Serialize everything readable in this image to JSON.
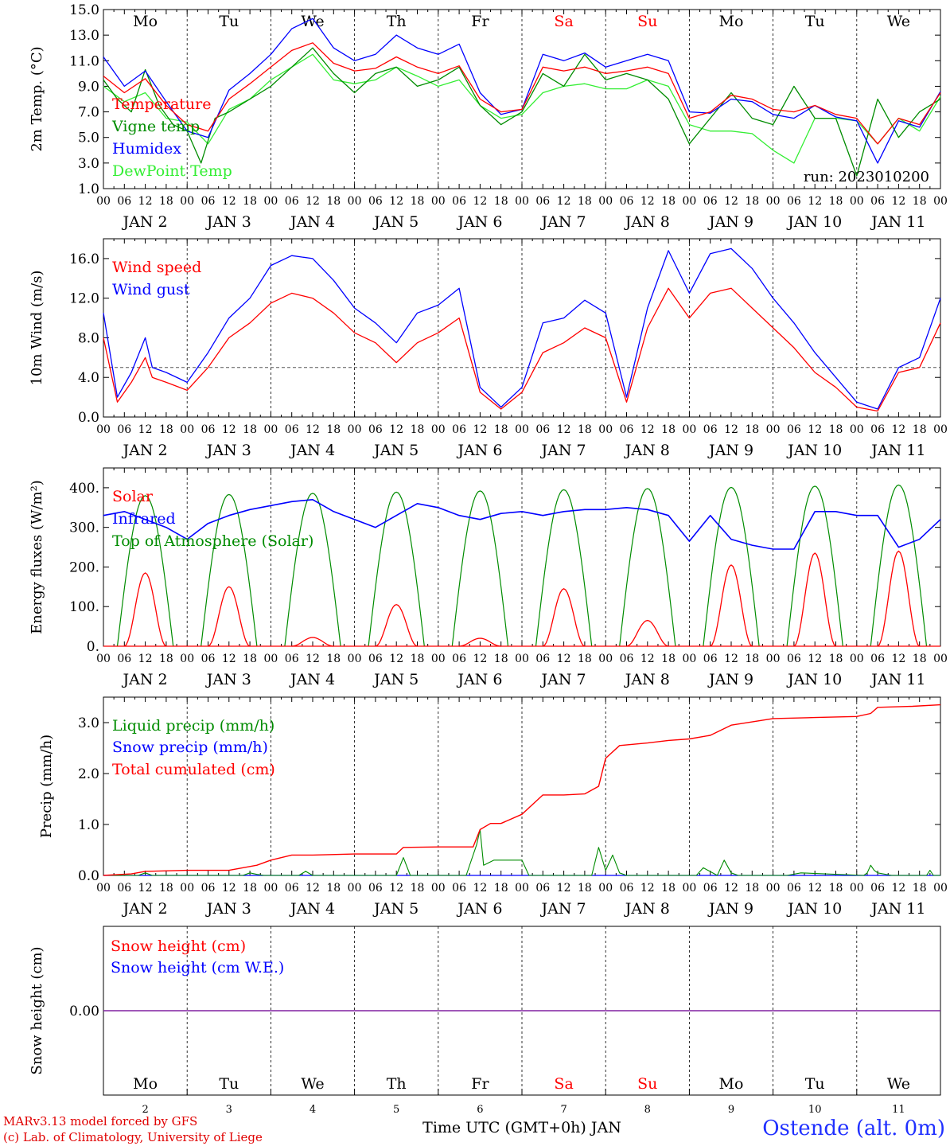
{
  "run_label": "run: 2023010200",
  "x_axis_label": "Time UTC (GMT+0h) JAN",
  "credit_line1": "MARv3.13 model forced by GFS",
  "credit_line2": "(c) Lab. of Climatology, University of Liege",
  "station": "Ostende (alt. 0m)",
  "days": [
    {
      "abbr": "Mo",
      "date": "JAN  2",
      "num": "2",
      "weekend": false
    },
    {
      "abbr": "Tu",
      "date": "JAN  3",
      "num": "3",
      "weekend": false
    },
    {
      "abbr": "We",
      "date": "JAN  4",
      "num": "4",
      "weekend": false
    },
    {
      "abbr": "Th",
      "date": "JAN  5",
      "num": "5",
      "weekend": false
    },
    {
      "abbr": "Fr",
      "date": "JAN  6",
      "num": "6",
      "weekend": false
    },
    {
      "abbr": "Sa",
      "date": "JAN  7",
      "num": "7",
      "weekend": true
    },
    {
      "abbr": "Su",
      "date": "JAN  8",
      "num": "8",
      "weekend": true
    },
    {
      "abbr": "Mo",
      "date": "JAN  9",
      "num": "9",
      "weekend": false
    },
    {
      "abbr": "Tu",
      "date": "JAN 10",
      "num": "10",
      "weekend": false
    },
    {
      "abbr": "We",
      "date": "JAN 11",
      "num": "11",
      "weekend": false
    }
  ],
  "hour_ticks": [
    "00",
    "06",
    "12",
    "18"
  ],
  "colors": {
    "red": "#ff0000",
    "green": "#008c00",
    "blue": "#0000ff",
    "lightgreen": "#33ee33",
    "purple": "#8020a0",
    "weekend": "#ff0000"
  },
  "chart_data": [
    {
      "type": "line",
      "ylabel": "2m Temp. (°C)",
      "ylim": [
        1,
        15
      ],
      "yticks": [
        "1.0",
        "3.0",
        "5.0",
        "7.0",
        "9.0",
        "11.0",
        "13.0",
        "15.0"
      ],
      "x_unit": "hours since JAN 2 00 UTC",
      "series": [
        {
          "name": "Temperature",
          "color": "red",
          "x": [
            0,
            6,
            12,
            18,
            24,
            30,
            36,
            42,
            48,
            54,
            60,
            66,
            72,
            78,
            84,
            90,
            96,
            102,
            108,
            114,
            120,
            126,
            132,
            138,
            144,
            150,
            156,
            162,
            168,
            174,
            180,
            186,
            192,
            198,
            204,
            210,
            216,
            222,
            228,
            234,
            240
          ],
          "values": [
            9.8,
            8.5,
            9.6,
            7.5,
            6.0,
            5.5,
            8.0,
            9.2,
            10.5,
            11.8,
            12.4,
            10.8,
            10.2,
            10.4,
            11.3,
            10.5,
            10.0,
            10.6,
            8.0,
            7.0,
            7.2,
            10.5,
            10.2,
            10.5,
            10.0,
            10.2,
            10.5,
            10.0,
            6.5,
            7.0,
            8.3,
            8.0,
            7.2,
            7.0,
            7.5,
            6.8,
            6.5,
            4.5,
            6.5,
            6.0,
            8.5
          ]
        },
        {
          "name": "Vigne temp",
          "color": "green",
          "x": [
            0,
            4,
            8,
            12,
            16,
            20,
            24,
            28,
            32,
            36,
            42,
            48,
            54,
            60,
            66,
            72,
            78,
            84,
            90,
            96,
            102,
            108,
            114,
            120,
            126,
            132,
            138,
            144,
            150,
            156,
            162,
            168,
            174,
            180,
            186,
            192,
            198,
            204,
            210,
            216,
            222,
            228,
            234,
            240
          ],
          "values": [
            9.5,
            8.0,
            7.0,
            10.3,
            7.5,
            6.0,
            5.5,
            3.0,
            6.5,
            7.0,
            8.0,
            9.0,
            10.5,
            12.0,
            10.0,
            8.5,
            10.0,
            10.5,
            9.0,
            9.5,
            10.5,
            7.5,
            6.0,
            7.0,
            10.0,
            9.0,
            11.5,
            9.5,
            10.0,
            9.5,
            8.0,
            4.5,
            6.5,
            8.5,
            6.5,
            6.0,
            9.0,
            6.5,
            6.5,
            2.0,
            8.0,
            5.0,
            7.0,
            8.0
          ]
        },
        {
          "name": "Humidex",
          "color": "blue",
          "x": [
            0,
            6,
            12,
            18,
            24,
            30,
            36,
            42,
            48,
            54,
            60,
            66,
            72,
            78,
            84,
            90,
            96,
            102,
            108,
            114,
            120,
            126,
            132,
            138,
            144,
            150,
            156,
            162,
            168,
            174,
            180,
            186,
            192,
            198,
            204,
            210,
            216,
            222,
            228,
            234,
            240
          ],
          "values": [
            11.3,
            9.0,
            10.2,
            7.8,
            5.5,
            5.0,
            8.7,
            10.0,
            11.5,
            13.5,
            14.3,
            12.0,
            11.0,
            11.5,
            13.0,
            12.0,
            11.5,
            12.3,
            8.5,
            6.8,
            7.2,
            11.5,
            11.0,
            11.6,
            10.5,
            11.0,
            11.5,
            11.0,
            7.0,
            6.9,
            8.0,
            7.8,
            6.8,
            6.5,
            7.5,
            6.6,
            6.3,
            3.0,
            6.3,
            5.8,
            8.6
          ]
        },
        {
          "name": "DewPoint Temp",
          "color": "lightgreen",
          "x": [
            0,
            6,
            12,
            18,
            24,
            30,
            36,
            42,
            48,
            54,
            60,
            66,
            72,
            78,
            84,
            90,
            96,
            102,
            108,
            114,
            120,
            126,
            132,
            138,
            144,
            150,
            156,
            162,
            168,
            174,
            180,
            186,
            192,
            198,
            204,
            210,
            216,
            222,
            228,
            234,
            240
          ],
          "values": [
            9.0,
            7.8,
            8.5,
            6.5,
            6.2,
            4.5,
            7.2,
            8.0,
            9.5,
            10.5,
            11.5,
            9.5,
            9.2,
            9.5,
            10.5,
            9.8,
            9.0,
            9.5,
            7.5,
            6.5,
            6.8,
            8.5,
            9.0,
            9.2,
            8.8,
            8.8,
            9.5,
            9.0,
            6.0,
            5.5,
            5.5,
            5.3,
            4.0,
            3.0,
            6.5,
            6.5,
            6.3,
            4.5,
            6.5,
            5.5,
            8.2
          ]
        }
      ]
    },
    {
      "type": "line",
      "ylabel": "10m Wind (m/s)",
      "ylim": [
        0,
        18
      ],
      "yticks": [
        "0.0",
        "4.0",
        "8.0",
        "12.0",
        "16.0"
      ],
      "reference_line": 5,
      "series": [
        {
          "name": "Wind speed",
          "color": "red",
          "x": [
            0,
            4,
            8,
            12,
            14,
            18,
            24,
            30,
            36,
            42,
            48,
            54,
            60,
            66,
            72,
            78,
            84,
            90,
            96,
            102,
            108,
            114,
            120,
            126,
            132,
            138,
            144,
            150,
            156,
            162,
            168,
            174,
            180,
            186,
            192,
            198,
            204,
            210,
            216,
            222,
            228,
            234,
            240
          ],
          "values": [
            8.0,
            1.5,
            3.5,
            6.0,
            4.0,
            3.5,
            2.7,
            5.0,
            8.0,
            9.5,
            11.5,
            12.5,
            12.0,
            10.5,
            8.5,
            7.5,
            5.5,
            7.5,
            8.5,
            10.0,
            2.5,
            0.8,
            2.5,
            6.5,
            7.5,
            9.0,
            8.0,
            1.5,
            9.0,
            13.0,
            10.0,
            12.5,
            13.0,
            11.0,
            9.0,
            7.0,
            4.5,
            3.0,
            1.0,
            0.6,
            4.5,
            5.0,
            9.5
          ]
        },
        {
          "name": "Wind gust",
          "color": "blue",
          "x": [
            0,
            4,
            8,
            12,
            14,
            18,
            24,
            30,
            36,
            42,
            48,
            54,
            60,
            66,
            72,
            78,
            84,
            90,
            96,
            102,
            108,
            114,
            120,
            126,
            132,
            138,
            144,
            150,
            156,
            162,
            168,
            174,
            180,
            186,
            192,
            198,
            204,
            210,
            216,
            222,
            228,
            234,
            240
          ],
          "values": [
            10.5,
            2.0,
            4.5,
            8.0,
            5.0,
            4.5,
            3.5,
            6.5,
            10.0,
            12.0,
            15.3,
            16.3,
            16.0,
            13.8,
            11.0,
            9.5,
            7.5,
            10.5,
            11.3,
            13.0,
            3.0,
            1.0,
            3.0,
            9.5,
            10.0,
            11.8,
            10.5,
            2.0,
            11.0,
            16.8,
            12.5,
            16.5,
            17.0,
            15.0,
            12.0,
            9.5,
            6.5,
            4.0,
            1.5,
            0.8,
            5.0,
            6.0,
            12.0
          ]
        }
      ]
    },
    {
      "type": "line",
      "ylabel": "Energy fluxes (W/m²)",
      "ylim": [
        0,
        450
      ],
      "yticks": [
        "0.",
        "100.",
        "200.",
        "300.",
        "400."
      ],
      "series": [
        {
          "name": "Solar",
          "color": "red",
          "peaks": [
            {
              "day": 0,
              "value": 185
            },
            {
              "day": 1,
              "value": 150
            },
            {
              "day": 2,
              "value": 22
            },
            {
              "day": 3,
              "value": 105
            },
            {
              "day": 4,
              "value": 20
            },
            {
              "day": 5,
              "value": 145
            },
            {
              "day": 6,
              "value": 65
            },
            {
              "day": 7,
              "value": 205
            },
            {
              "day": 8,
              "value": 235
            },
            {
              "day": 9,
              "value": 240
            }
          ]
        },
        {
          "name": "Infrared",
          "color": "blue",
          "x": [
            0,
            6,
            12,
            18,
            24,
            30,
            36,
            42,
            48,
            54,
            60,
            66,
            72,
            78,
            84,
            90,
            96,
            102,
            108,
            114,
            120,
            126,
            132,
            138,
            144,
            150,
            156,
            162,
            168,
            174,
            180,
            186,
            192,
            198,
            204,
            210,
            216,
            222,
            228,
            234,
            240
          ],
          "values": [
            330,
            340,
            320,
            300,
            270,
            310,
            330,
            345,
            355,
            365,
            370,
            340,
            320,
            300,
            330,
            360,
            350,
            330,
            320,
            335,
            340,
            330,
            340,
            345,
            345,
            350,
            345,
            330,
            265,
            330,
            270,
            255,
            245,
            245,
            340,
            340,
            330,
            330,
            250,
            270,
            320
          ]
        },
        {
          "name": "Top of Atmosphere (Solar)",
          "color": "green",
          "peaks": [
            {
              "day": 0,
              "value": 380
            },
            {
              "day": 1,
              "value": 383
            },
            {
              "day": 2,
              "value": 386
            },
            {
              "day": 3,
              "value": 389
            },
            {
              "day": 4,
              "value": 392
            },
            {
              "day": 5,
              "value": 395
            },
            {
              "day": 6,
              "value": 398
            },
            {
              "day": 7,
              "value": 401
            },
            {
              "day": 8,
              "value": 404
            },
            {
              "day": 9,
              "value": 407
            }
          ]
        }
      ]
    },
    {
      "type": "line",
      "ylabel": "Precip (mm/h)",
      "ylim": [
        0,
        3.5
      ],
      "yticks": [
        "0.0",
        "1.0",
        "2.0",
        "3.0"
      ],
      "series": [
        {
          "name": "Liquid precip (mm/h)",
          "color": "green",
          "x": [
            0,
            10,
            12,
            14,
            40,
            42,
            44,
            46,
            56,
            58,
            60,
            84,
            86,
            88,
            104,
            107,
            108,
            109,
            112,
            118,
            120,
            122,
            140,
            142,
            144,
            146,
            148,
            150,
            170,
            172,
            176,
            178,
            180,
            182,
            196,
            200,
            218,
            219,
            220,
            221,
            222,
            226,
            236,
            237,
            238,
            240
          ],
          "values": [
            0,
            0,
            0.05,
            0,
            0,
            0.05,
            0.02,
            0,
            0,
            0.08,
            0,
            0,
            0.35,
            0,
            0,
            0.6,
            0.9,
            0.2,
            0.3,
            0.3,
            0.3,
            0,
            0,
            0.55,
            0.1,
            0.4,
            0.05,
            0,
            0,
            0.15,
            0,
            0.3,
            0.05,
            0,
            0,
            0.05,
            0,
            0.05,
            0.2,
            0.1,
            0.05,
            0,
            0,
            0.1,
            0,
            0
          ]
        },
        {
          "name": "Snow precip (mm/h)",
          "color": "blue",
          "x": [
            0,
            240
          ],
          "values": [
            0,
            0
          ]
        },
        {
          "name": "Total cumulated (cm)",
          "color": "red",
          "x": [
            0,
            8,
            12,
            24,
            36,
            44,
            48,
            54,
            60,
            72,
            84,
            86,
            96,
            106,
            108,
            111,
            114,
            120,
            126,
            132,
            138,
            142,
            144,
            148,
            156,
            162,
            168,
            174,
            180,
            192,
            204,
            216,
            220,
            222,
            232,
            240
          ],
          "values": [
            0,
            0.03,
            0.08,
            0.1,
            0.1,
            0.2,
            0.3,
            0.4,
            0.4,
            0.42,
            0.42,
            0.55,
            0.56,
            0.56,
            0.9,
            1.02,
            1.02,
            1.2,
            1.58,
            1.58,
            1.6,
            1.75,
            2.3,
            2.55,
            2.6,
            2.65,
            2.68,
            2.75,
            2.95,
            3.08,
            3.1,
            3.12,
            3.18,
            3.3,
            3.32,
            3.35
          ]
        }
      ]
    },
    {
      "type": "line",
      "ylabel": "Snow height (cm)",
      "yticks": [
        "0.00"
      ],
      "series": [
        {
          "name": "Snow height (cm)",
          "color": "red",
          "x": [
            0,
            240
          ],
          "values": [
            0,
            0
          ]
        },
        {
          "name": "Snow height (cm W.E.)",
          "color": "blue",
          "x": [
            0,
            240
          ],
          "values": [
            0,
            0
          ]
        }
      ]
    }
  ]
}
